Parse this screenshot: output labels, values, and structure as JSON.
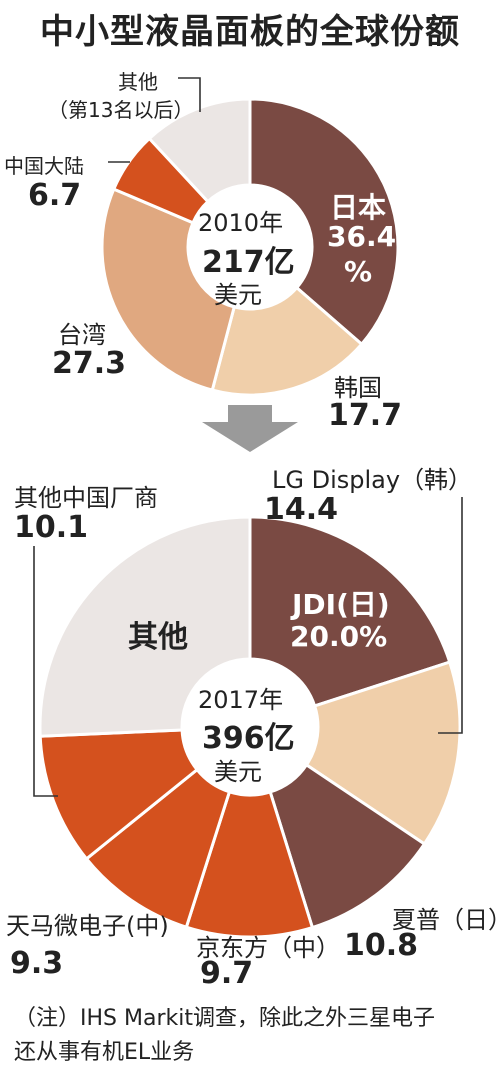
{
  "title": "中小型液晶面板的全球份额",
  "colors": {
    "dark": "#7a4a43",
    "light": "#f0cfaa",
    "mid": "#e0a880",
    "orange": "#d4511e",
    "grey": "#ebe6e4",
    "arrow": "#9a9a9a",
    "text": "#222222"
  },
  "chart_data": [
    {
      "type": "pie",
      "center_label": [
        "2010年",
        "217亿",
        "美元"
      ],
      "slices": [
        {
          "name": "日本",
          "value": 36.4,
          "value_label": "36.4",
          "unit_label": "%",
          "color": "#7a4a43"
        },
        {
          "name": "韩国",
          "value": 17.7,
          "value_label": "17.7",
          "color": "#f0cfaa"
        },
        {
          "name": "台湾",
          "value": 27.3,
          "value_label": "27.3",
          "color": "#e0a880"
        },
        {
          "name": "中国大陆",
          "value": 6.7,
          "value_label": "6.7",
          "color": "#d4511e"
        },
        {
          "name": "其他",
          "sub": "（第13名以后）",
          "value": 11.9,
          "color": "#ebe6e4"
        }
      ]
    },
    {
      "type": "pie",
      "center_label": [
        "2017年",
        "396亿",
        "美元"
      ],
      "slices": [
        {
          "name": "JDI(日)",
          "value": 20.0,
          "value_label": "20.0%",
          "color": "#7a4a43"
        },
        {
          "name": "LG Display（韩）",
          "value": 14.4,
          "value_label": "14.4",
          "color": "#f0cfaa"
        },
        {
          "name": "夏普（日）",
          "value": 10.8,
          "value_label": "10.8",
          "color": "#7a4a43"
        },
        {
          "name": "京东方（中）",
          "value": 9.7,
          "value_label": "9.7",
          "color": "#d4511e"
        },
        {
          "name": "天马微电子(中)",
          "value": 9.3,
          "value_label": "9.3",
          "color": "#d4511e"
        },
        {
          "name": "其他中国厂商",
          "value": 10.1,
          "value_label": "10.1",
          "color": "#d4511e"
        },
        {
          "name": "其他",
          "value": 25.7,
          "color": "#ebe6e4"
        }
      ]
    }
  ],
  "note": [
    "（注）IHS Markit调查，除此之外三星电子",
    "还从事有机EL业务"
  ]
}
